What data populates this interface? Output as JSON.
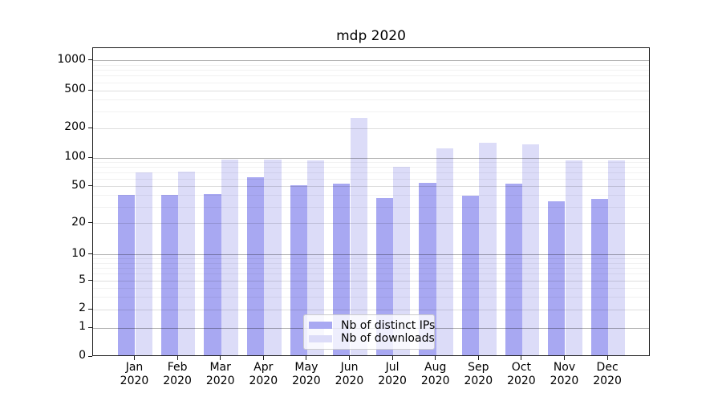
{
  "title": "mdp 2020",
  "chart_data": {
    "type": "bar",
    "title": "mdp 2020",
    "categories": [
      "Jan 2020",
      "Feb 2020",
      "Mar 2020",
      "Apr 2020",
      "May 2020",
      "Jun 2020",
      "Jul 2020",
      "Aug 2020",
      "Sep 2020",
      "Oct 2020",
      "Nov 2020",
      "Dec 2020"
    ],
    "series": [
      {
        "name": "Nb of distinct IPs",
        "color": "#a8a8f2",
        "values": [
          39,
          39,
          40,
          60,
          50,
          52,
          36,
          53,
          38,
          52,
          33,
          35
        ]
      },
      {
        "name": "Nb of downloads",
        "color": "#dcdcf8",
        "values": [
          68,
          69,
          92,
          92,
          90,
          250,
          78,
          121,
          137,
          133,
          90,
          90
        ]
      }
    ],
    "y_axis": {
      "scale": "symlog",
      "ticks": [
        0,
        1,
        2,
        5,
        10,
        20,
        50,
        100,
        200,
        500,
        1000
      ],
      "minor_ticks": [
        3,
        4,
        6,
        7,
        8,
        9,
        30,
        40,
        60,
        70,
        80,
        90,
        300,
        400,
        600,
        700,
        800,
        900
      ],
      "ylim": [
        0,
        1300
      ]
    },
    "grid": {
      "horizontal": true,
      "vertical": false,
      "minor": true
    },
    "legend_position": "lower center"
  }
}
